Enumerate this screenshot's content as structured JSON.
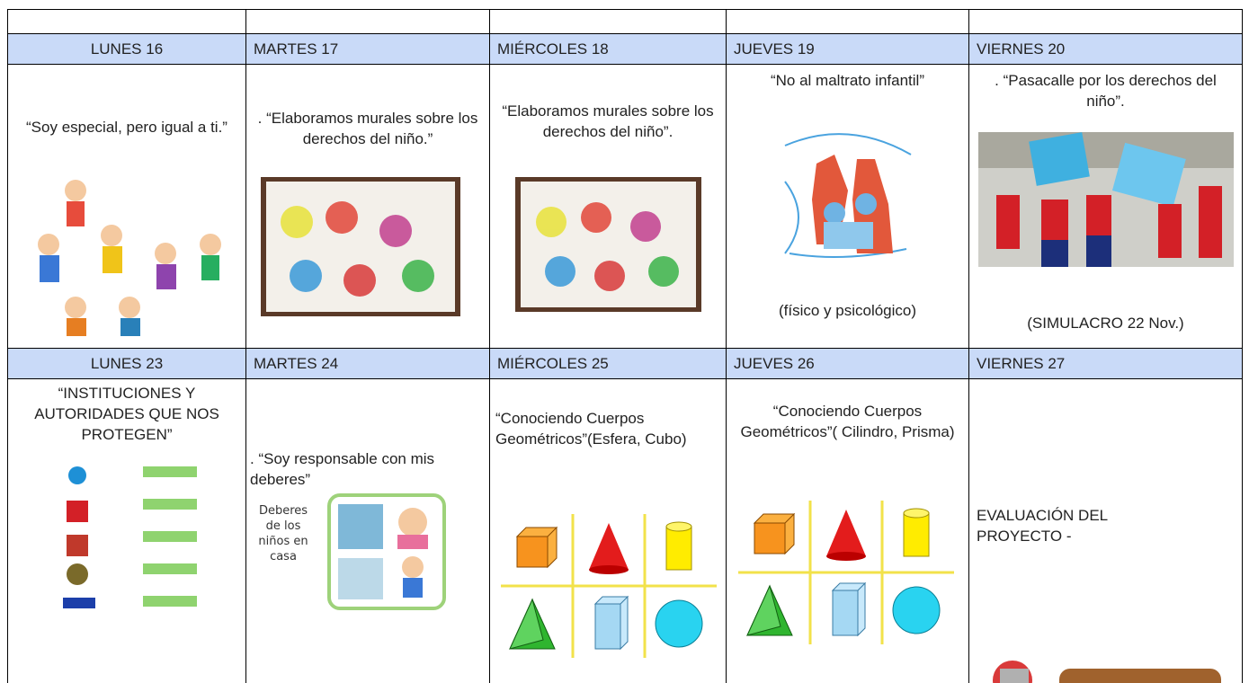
{
  "table": {
    "weeks": [
      {
        "cells": [
          {
            "day": "LUNES 16",
            "activity": "“Soy especial, pero igual a ti.”"
          },
          {
            "day": "MARTES 17",
            "activity": ". “Elaboramos murales sobre los derechos del niño.”"
          },
          {
            "day": "MIÉRCOLES 18",
            "activity": "“Elaboramos murales sobre los derechos del niño”."
          },
          {
            "day": "JUEVES 19",
            "activity": "“No al maltrato infantil”",
            "note": "(físico y psicológico)"
          },
          {
            "day": "VIERNES 20",
            "activity": ". “Pasacalle por los derechos del niño”.",
            "note": "(SIMULACRO 22 Nov.)"
          }
        ]
      },
      {
        "cells": [
          {
            "day": "LUNES 23",
            "activity": "“INSTITUCIONES Y AUTORIDADES QUE NOS PROTEGEN”"
          },
          {
            "day": "MARTES 24",
            "activity": ". “Soy responsable con mis deberes”",
            "image_caption": "Deberes de los niños en casa"
          },
          {
            "day": "MIÉRCOLES 25",
            "activity": "“Conociendo Cuerpos Geométricos”(Esfera, Cubo)"
          },
          {
            "day": "JUEVES 26",
            "activity": "“Conociendo Cuerpos Geométricos”( Cilindro, Prisma)"
          },
          {
            "day": "VIERNES 27",
            "activity": "EVALUACIÓN DEL PROYECTO -"
          }
        ]
      }
    ]
  }
}
